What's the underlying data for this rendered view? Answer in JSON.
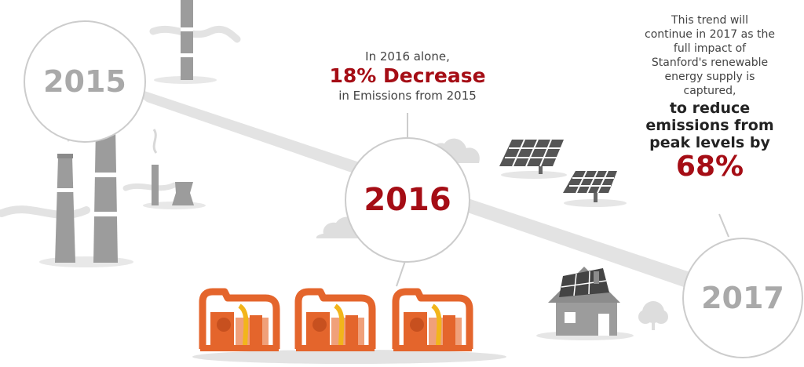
{
  "years": {
    "y2015": "2015",
    "y2016": "2016",
    "y2017": "2017"
  },
  "callout_2016": {
    "line1": "In 2016 alone,",
    "headline": "18% Decrease",
    "line3": "in Emissions from 2015"
  },
  "callout_2017": {
    "line1": "This trend will",
    "line2": "continue in 2017 as the",
    "line3": "full impact of",
    "line4": "Stanford's renewable",
    "line5": "energy supply is",
    "line6": "captured,",
    "bold1": "to reduce",
    "bold2": "emissions from",
    "bold3": "peak levels by",
    "percent": "68%"
  },
  "colors": {
    "accent": "#a50d15",
    "gray": "#a9a9a9",
    "light_gray": "#e0e0e0",
    "orange": "#e4652c",
    "yellow": "#f2b51b",
    "text": "#444444"
  }
}
